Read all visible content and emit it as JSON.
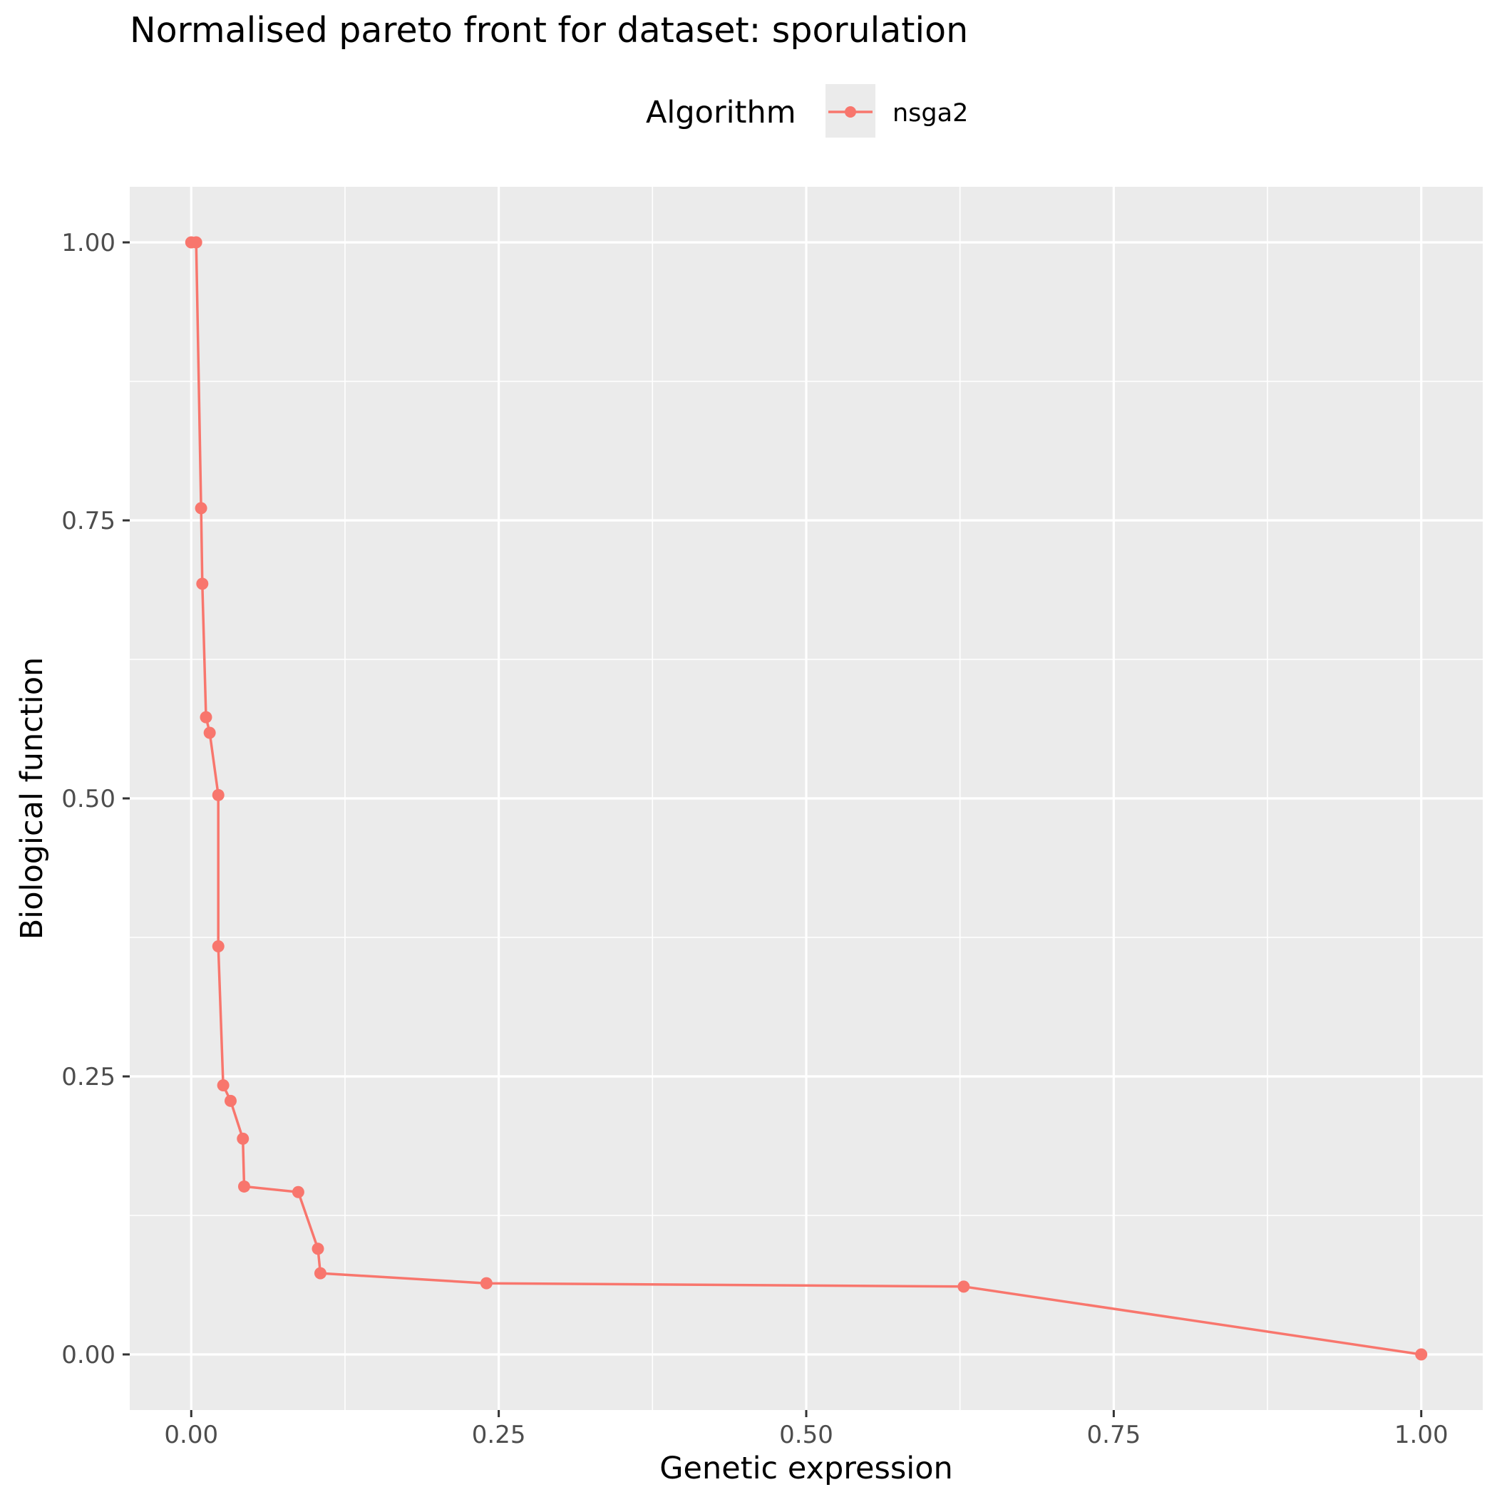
{
  "chart_data": {
    "type": "line",
    "title": "Normalised pareto front for dataset: sporulation",
    "xlabel": "Genetic expression",
    "ylabel": "Biological function",
    "xlim": [
      -0.05,
      1.05
    ],
    "ylim": [
      -0.05,
      1.05
    ],
    "x_ticks": [
      "0.00",
      "0.25",
      "0.50",
      "0.75",
      "1.00"
    ],
    "y_ticks": [
      "0.00",
      "0.25",
      "0.50",
      "0.75",
      "1.00"
    ],
    "grid": true,
    "legend": {
      "title": "Algorithm",
      "placement": "top"
    },
    "series": [
      {
        "name": "nsga2",
        "color": "#F8766D",
        "x": [
          0.0,
          0.004,
          0.008,
          0.009,
          0.012,
          0.015,
          0.022,
          0.022,
          0.026,
          0.032,
          0.042,
          0.043,
          0.087,
          0.103,
          0.105,
          0.24,
          0.628,
          1.0
        ],
        "y": [
          1.0,
          1.0,
          0.761,
          0.693,
          0.573,
          0.559,
          0.503,
          0.367,
          0.242,
          0.228,
          0.194,
          0.151,
          0.146,
          0.095,
          0.073,
          0.064,
          0.061,
          0.0
        ]
      }
    ]
  }
}
